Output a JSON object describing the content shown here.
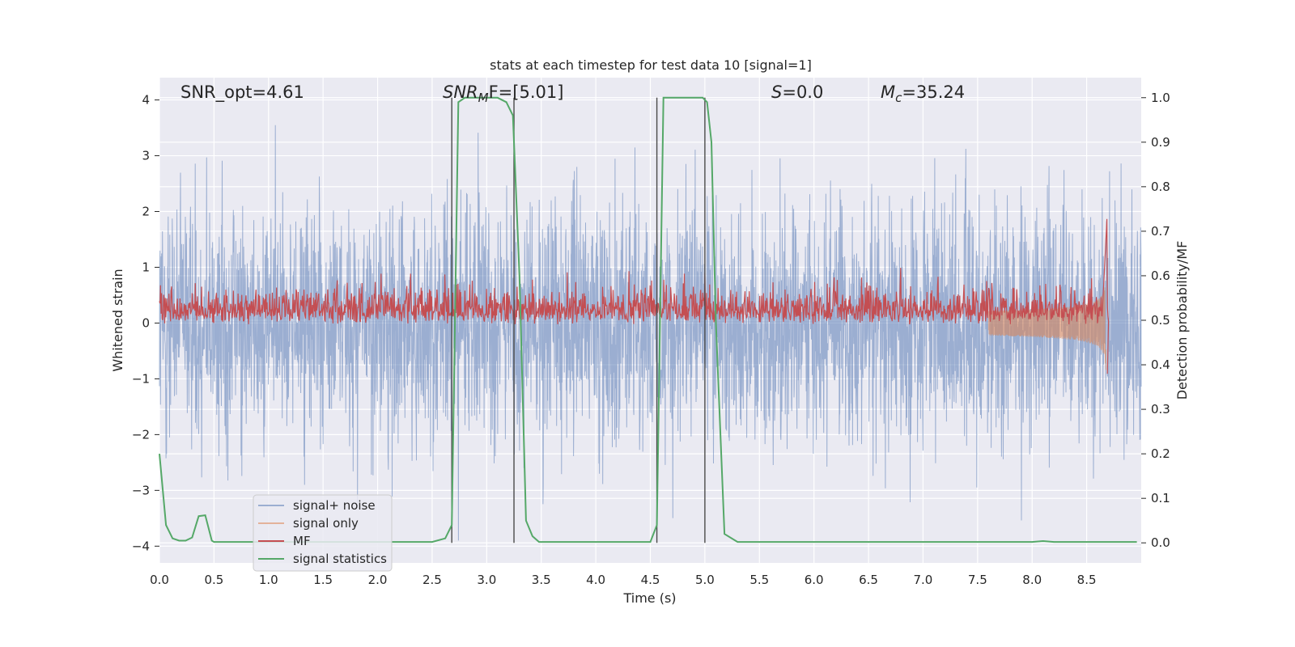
{
  "chart_data": {
    "type": "line",
    "title": "stats at each timestep for test data 10 [signal=1]",
    "xlabel": "Time (s)",
    "ylabel": "Whitened strain",
    "y2label": "Detection probability/MF",
    "xlim": [
      0,
      9.0
    ],
    "ylim": [
      -4.3,
      4.4
    ],
    "y2lim": [
      -0.045,
      1.045
    ],
    "x_ticks": [
      "0.0",
      "0.5",
      "1.0",
      "1.5",
      "2.0",
      "2.5",
      "3.0",
      "3.5",
      "4.0",
      "4.5",
      "5.0",
      "5.5",
      "6.0",
      "6.5",
      "7.0",
      "7.5",
      "8.0",
      "8.5"
    ],
    "y_ticks": [
      "4",
      "3",
      "2",
      "1",
      "0",
      "−1",
      "−2",
      "−3",
      "−4"
    ],
    "y2_ticks": [
      "1.0",
      "0.9",
      "0.8",
      "0.7",
      "0.6",
      "0.5",
      "0.4",
      "0.3",
      "0.2",
      "0.1",
      "0.0"
    ],
    "grid": true,
    "legend_position": "lower-left",
    "annotations": {
      "snr_opt": "SNR_opt=4.61",
      "snr_mf_base": "SNR",
      "snr_mf_sub": "M",
      "snr_mf_rest": "F=[5.01]",
      "s_var": "S",
      "s_value": "=0.0",
      "mc_var": "M",
      "mc_sub": "c",
      "mc_value": "=35.24"
    },
    "vlines": [
      2.68,
      3.25,
      4.56,
      5.0
    ],
    "series": [
      {
        "name": "signal+ noise",
        "color": "#4c72b0",
        "axis": "left",
        "note": "whitened strain noise, amplitude ~ ±2.5 with spikes to ±3.9"
      },
      {
        "name": "signal only",
        "color": "#dd8452",
        "axis": "left",
        "chirp_end": 8.68,
        "chirp_peak": 1.0
      },
      {
        "name": "MF",
        "color": "#c44e52",
        "axis": "right",
        "baseline": 0.5,
        "amplitude": 0.12
      },
      {
        "name": "signal statistics",
        "color": "#55a868",
        "axis": "right",
        "x": [
          0.0,
          0.06,
          0.12,
          0.18,
          0.24,
          0.3,
          0.36,
          0.42,
          0.48,
          0.5,
          0.6,
          1.0,
          1.5,
          2.0,
          2.5,
          2.62,
          2.68,
          2.74,
          2.8,
          3.0,
          3.1,
          3.18,
          3.24,
          3.3,
          3.36,
          3.42,
          3.48,
          3.6,
          4.0,
          4.4,
          4.5,
          4.56,
          4.62,
          4.7,
          4.98,
          5.02,
          5.06,
          5.1,
          5.18,
          5.3,
          6.0,
          7.0,
          7.9,
          8.0,
          8.1,
          8.2,
          8.5,
          8.96
        ],
        "y": [
          0.2,
          0.04,
          0.01,
          0.005,
          0.005,
          0.012,
          0.06,
          0.062,
          0.005,
          0.002,
          0.002,
          0.002,
          0.002,
          0.002,
          0.002,
          0.01,
          0.04,
          0.99,
          1.0,
          1.0,
          1.0,
          0.99,
          0.96,
          0.6,
          0.05,
          0.015,
          0.002,
          0.002,
          0.002,
          0.002,
          0.002,
          0.04,
          1.0,
          1.0,
          1.0,
          0.99,
          0.9,
          0.5,
          0.02,
          0.002,
          0.002,
          0.002,
          0.002,
          0.002,
          0.004,
          0.002,
          0.002,
          0.002
        ]
      }
    ]
  }
}
